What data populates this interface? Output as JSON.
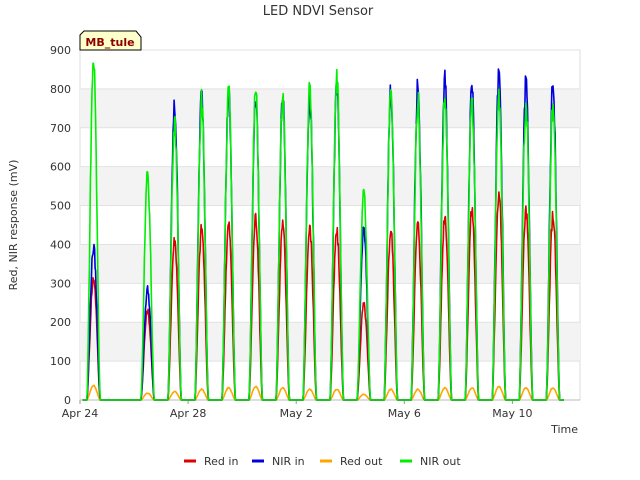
{
  "chart_data": {
    "type": "line",
    "title": "LED NDVI Sensor",
    "xlabel": "Time",
    "ylabel": "Red, NIR response (mV)",
    "site_label": "MB_tule",
    "x_start": "Apr 24",
    "x_end": "May 12",
    "xticks": [
      {
        "label": "Apr 24",
        "day": 0
      },
      {
        "label": "Apr 28",
        "day": 4
      },
      {
        "label": "May 2",
        "day": 8
      },
      {
        "label": "May 6",
        "day": 12
      },
      {
        "label": "May 10",
        "day": 16
      }
    ],
    "ylim": [
      0,
      900
    ],
    "yticks": [
      0,
      100,
      200,
      300,
      400,
      500,
      600,
      700,
      800,
      900
    ],
    "grid": true,
    "legend_position": "bottom",
    "series": [
      {
        "name": "Red in",
        "color": "#dd0000",
        "x": [
          "Apr 24",
          "Apr 25",
          "Apr 26",
          "Apr 27",
          "Apr 28",
          "Apr 29",
          "Apr 30",
          "May 1",
          "May 2",
          "May 3",
          "May 4",
          "May 5",
          "May 6",
          "May 7",
          "May 8",
          "May 9",
          "May 10",
          "May 11"
        ],
        "values": [
          320,
          0,
          235,
          420,
          450,
          460,
          480,
          460,
          450,
          440,
          250,
          445,
          460,
          485,
          500,
          545,
          495,
          485
        ]
      },
      {
        "name": "NIR in",
        "color": "#0000dd",
        "x": [
          "Apr 24",
          "Apr 25",
          "Apr 26",
          "Apr 27",
          "Apr 28",
          "Apr 29",
          "Apr 30",
          "May 1",
          "May 2",
          "May 3",
          "May 4",
          "May 5",
          "May 6",
          "May 7",
          "May 8",
          "May 9",
          "May 10",
          "May 11"
        ],
        "values": [
          400,
          0,
          290,
          770,
          800,
          800,
          800,
          790,
          800,
          810,
          445,
          810,
          825,
          835,
          835,
          855,
          835,
          830
        ]
      },
      {
        "name": "Red out",
        "color": "#ffa500",
        "x": [
          "Apr 24",
          "Apr 25",
          "Apr 26",
          "Apr 27",
          "Apr 28",
          "Apr 29",
          "Apr 30",
          "May 1",
          "May 2",
          "May 3",
          "May 4",
          "May 5",
          "May 6",
          "May 7",
          "May 8",
          "May 9",
          "May 10",
          "May 11"
        ],
        "values": [
          38,
          0,
          18,
          22,
          28,
          32,
          35,
          32,
          28,
          28,
          15,
          28,
          28,
          32,
          32,
          35,
          32,
          32
        ]
      },
      {
        "name": "NIR out",
        "color": "#00ee00",
        "x": [
          "Apr 24",
          "Apr 25",
          "Apr 26",
          "Apr 27",
          "Apr 28",
          "Apr 29",
          "Apr 30",
          "May 1",
          "May 2",
          "May 3",
          "May 4",
          "May 5",
          "May 6",
          "May 7",
          "May 8",
          "May 9",
          "May 10",
          "May 11"
        ],
        "values": [
          890,
          0,
          585,
          730,
          785,
          805,
          810,
          790,
          820,
          850,
          540,
          805,
          790,
          790,
          790,
          800,
          780,
          770
        ]
      }
    ]
  }
}
